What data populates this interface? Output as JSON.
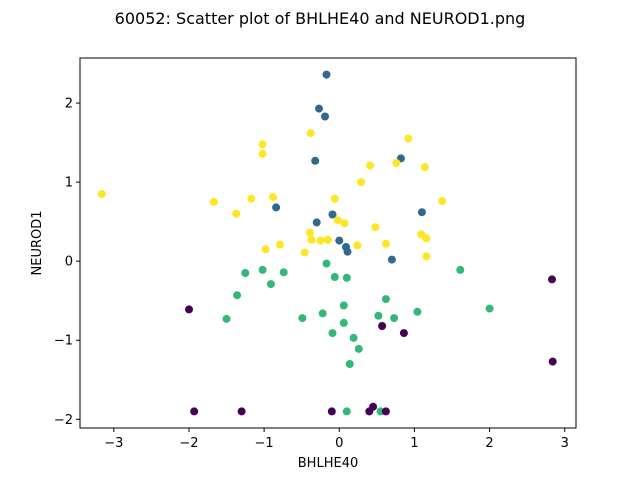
{
  "chart_data": {
    "type": "scatter",
    "title": "60052: Scatter plot of BHLHE40 and NEUROD1.png",
    "xlabel": "BHLHE40",
    "ylabel": "NEUROD1",
    "xlim": [
      -3.45,
      3.15
    ],
    "ylim": [
      -2.11,
      2.57
    ],
    "xticks": [
      -3,
      -2,
      -1,
      0,
      1,
      2,
      3
    ],
    "yticks": [
      -2,
      -1,
      0,
      1,
      2
    ],
    "grid": false,
    "legend": "none",
    "colors": {
      "yellow": "#fde725",
      "green": "#35b779",
      "blue": "#31688e",
      "purple": "#440154"
    },
    "points": [
      {
        "x": -0.17,
        "y": 2.36,
        "c": "blue"
      },
      {
        "x": -0.27,
        "y": 1.93,
        "c": "blue"
      },
      {
        "x": -0.19,
        "y": 1.83,
        "c": "blue"
      },
      {
        "x": -0.32,
        "y": 1.27,
        "c": "blue"
      },
      {
        "x": 0.82,
        "y": 1.3,
        "c": "blue"
      },
      {
        "x": -0.84,
        "y": 0.68,
        "c": "blue"
      },
      {
        "x": 1.1,
        "y": 0.62,
        "c": "blue"
      },
      {
        "x": -0.09,
        "y": 0.59,
        "c": "blue"
      },
      {
        "x": -0.3,
        "y": 0.49,
        "c": "blue"
      },
      {
        "x": 0.0,
        "y": 0.26,
        "c": "blue"
      },
      {
        "x": 0.09,
        "y": 0.18,
        "c": "blue"
      },
      {
        "x": 0.11,
        "y": 0.12,
        "c": "blue"
      },
      {
        "x": 0.7,
        "y": 0.02,
        "c": "blue"
      },
      {
        "x": -3.16,
        "y": 0.85,
        "c": "yellow"
      },
      {
        "x": -1.67,
        "y": 0.75,
        "c": "yellow"
      },
      {
        "x": -1.37,
        "y": 0.6,
        "c": "yellow"
      },
      {
        "x": -1.17,
        "y": 0.79,
        "c": "yellow"
      },
      {
        "x": -1.02,
        "y": 1.48,
        "c": "yellow"
      },
      {
        "x": -1.02,
        "y": 1.36,
        "c": "yellow"
      },
      {
        "x": -0.98,
        "y": 0.15,
        "c": "yellow"
      },
      {
        "x": -0.88,
        "y": 0.81,
        "c": "yellow"
      },
      {
        "x": -0.79,
        "y": 0.21,
        "c": "yellow"
      },
      {
        "x": -0.38,
        "y": 1.62,
        "c": "yellow"
      },
      {
        "x": -0.39,
        "y": 0.36,
        "c": "yellow"
      },
      {
        "x": -0.37,
        "y": 0.27,
        "c": "yellow"
      },
      {
        "x": -0.25,
        "y": 0.26,
        "c": "yellow"
      },
      {
        "x": -0.15,
        "y": 0.27,
        "c": "yellow"
      },
      {
        "x": -0.46,
        "y": 0.11,
        "c": "yellow"
      },
      {
        "x": -0.06,
        "y": 0.79,
        "c": "yellow"
      },
      {
        "x": -0.02,
        "y": 0.52,
        "c": "yellow"
      },
      {
        "x": 0.07,
        "y": 0.48,
        "c": "yellow"
      },
      {
        "x": 0.24,
        "y": 0.2,
        "c": "yellow"
      },
      {
        "x": 0.29,
        "y": 1.0,
        "c": "yellow"
      },
      {
        "x": 0.41,
        "y": 1.21,
        "c": "yellow"
      },
      {
        "x": 0.48,
        "y": 0.43,
        "c": "yellow"
      },
      {
        "x": 0.62,
        "y": 0.22,
        "c": "yellow"
      },
      {
        "x": 0.76,
        "y": 1.24,
        "c": "yellow"
      },
      {
        "x": 0.92,
        "y": 1.55,
        "c": "yellow"
      },
      {
        "x": 1.09,
        "y": 0.34,
        "c": "yellow"
      },
      {
        "x": 1.14,
        "y": 1.19,
        "c": "yellow"
      },
      {
        "x": 1.16,
        "y": 0.29,
        "c": "yellow"
      },
      {
        "x": 1.16,
        "y": 0.06,
        "c": "yellow"
      },
      {
        "x": 1.37,
        "y": 0.76,
        "c": "yellow"
      },
      {
        "x": -1.25,
        "y": -0.15,
        "c": "green"
      },
      {
        "x": -1.02,
        "y": -0.11,
        "c": "green"
      },
      {
        "x": -0.91,
        "y": -0.29,
        "c": "green"
      },
      {
        "x": -0.74,
        "y": -0.14,
        "c": "green"
      },
      {
        "x": -1.36,
        "y": -0.43,
        "c": "green"
      },
      {
        "x": -1.5,
        "y": -0.73,
        "c": "green"
      },
      {
        "x": -0.49,
        "y": -0.72,
        "c": "green"
      },
      {
        "x": -0.22,
        "y": -0.66,
        "c": "green"
      },
      {
        "x": -0.17,
        "y": -0.03,
        "c": "green"
      },
      {
        "x": -0.06,
        "y": -0.2,
        "c": "green"
      },
      {
        "x": 0.1,
        "y": -0.21,
        "c": "green"
      },
      {
        "x": 0.06,
        "y": -0.56,
        "c": "green"
      },
      {
        "x": 0.06,
        "y": -0.78,
        "c": "green"
      },
      {
        "x": -0.09,
        "y": -0.91,
        "c": "green"
      },
      {
        "x": 0.19,
        "y": -0.97,
        "c": "green"
      },
      {
        "x": 0.26,
        "y": -1.11,
        "c": "green"
      },
      {
        "x": 0.14,
        "y": -1.3,
        "c": "green"
      },
      {
        "x": 0.52,
        "y": -0.69,
        "c": "green"
      },
      {
        "x": 0.62,
        "y": -0.48,
        "c": "green"
      },
      {
        "x": 0.73,
        "y": -0.72,
        "c": "green"
      },
      {
        "x": 1.04,
        "y": -0.64,
        "c": "green"
      },
      {
        "x": 1.61,
        "y": -0.11,
        "c": "green"
      },
      {
        "x": 2.0,
        "y": -0.6,
        "c": "green"
      },
      {
        "x": 0.1,
        "y": -1.9,
        "c": "green"
      },
      {
        "x": 0.55,
        "y": -1.9,
        "c": "green"
      },
      {
        "x": -2.0,
        "y": -0.61,
        "c": "purple"
      },
      {
        "x": -1.93,
        "y": -1.9,
        "c": "purple"
      },
      {
        "x": -1.3,
        "y": -1.9,
        "c": "purple"
      },
      {
        "x": -0.1,
        "y": -1.9,
        "c": "purple"
      },
      {
        "x": 0.4,
        "y": -1.9,
        "c": "purple"
      },
      {
        "x": 0.45,
        "y": -1.84,
        "c": "purple"
      },
      {
        "x": 0.62,
        "y": -1.9,
        "c": "purple"
      },
      {
        "x": 0.57,
        "y": -0.82,
        "c": "purple"
      },
      {
        "x": 0.86,
        "y": -0.91,
        "c": "purple"
      },
      {
        "x": 2.83,
        "y": -0.23,
        "c": "purple"
      },
      {
        "x": 2.84,
        "y": -1.27,
        "c": "purple"
      }
    ]
  }
}
